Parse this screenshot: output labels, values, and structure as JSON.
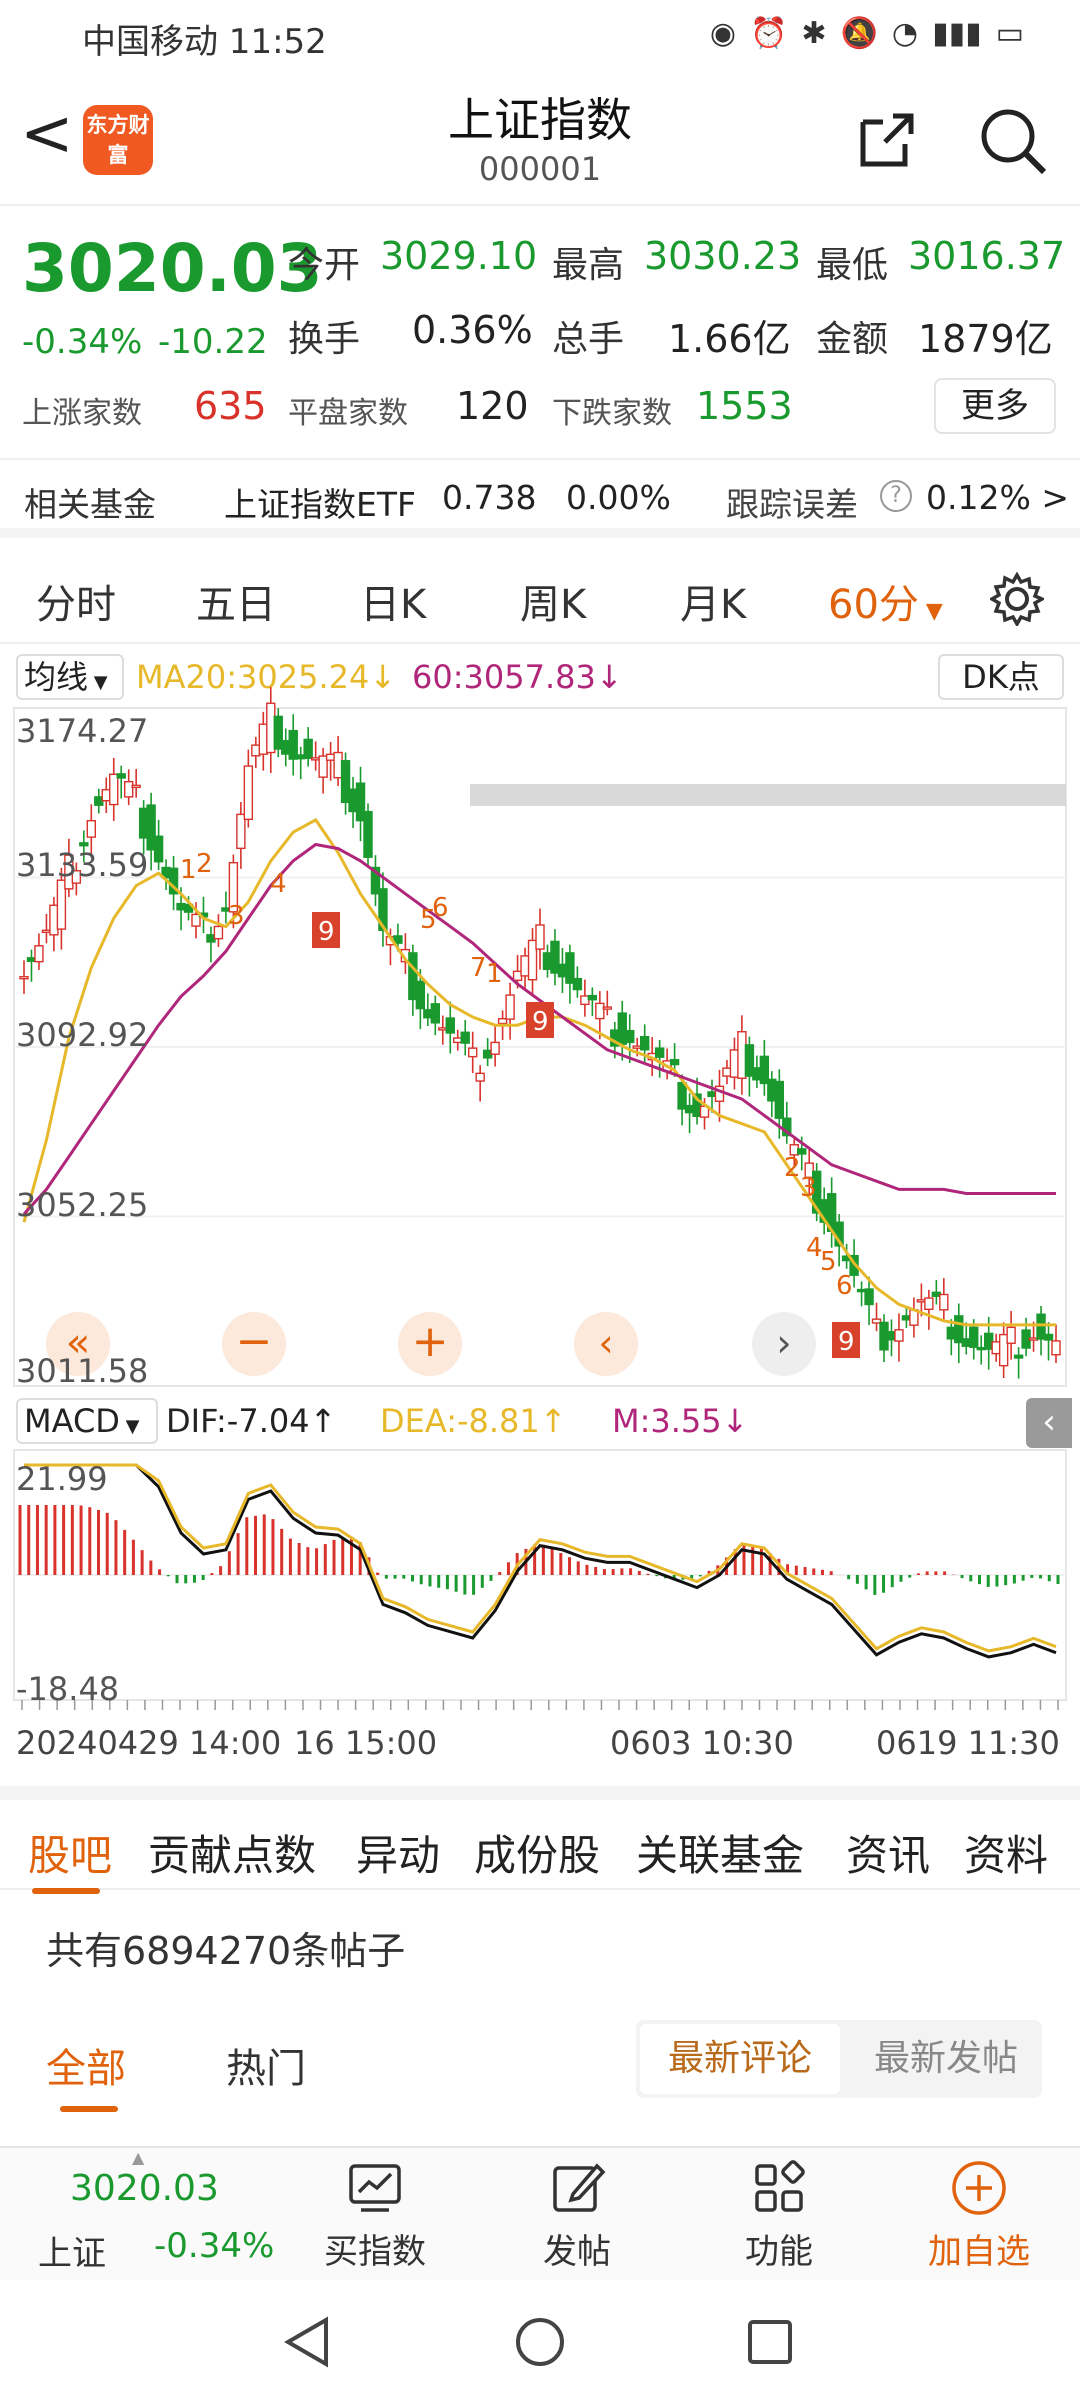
{
  "status_bar": {
    "carrier_time": "中国移动 11:52"
  },
  "header": {
    "back": "<",
    "logo": "东方财富",
    "title": "上证指数",
    "code": "000001"
  },
  "quote": {
    "price": "3020.03",
    "change_pct": "-0.34%",
    "change": "-10.22",
    "open_label": "今开",
    "open": "3029.10",
    "high_label": "最高",
    "high": "3030.23",
    "low_label": "最低",
    "low": "3016.37",
    "turnover_label": "换手",
    "turnover": "0.36%",
    "volume_label": "总手",
    "volume": "1.66亿",
    "amount_label": "金额",
    "amount": "1879亿",
    "up_label": "上涨家数",
    "up": "635",
    "flat_label": "平盘家数",
    "flat": "120",
    "down_label": "下跌家数",
    "down": "1553",
    "more": "更多"
  },
  "fund_row": {
    "label": "相关基金",
    "name": "上证指数ETF",
    "price": "0.738",
    "pct": "0.00%",
    "tracking_label": "跟踪误差",
    "tracking_value": "0.12% >"
  },
  "period_tabs": [
    "分时",
    "五日",
    "日K",
    "周K",
    "月K",
    "60分"
  ],
  "chart_header": {
    "indicator": "均线",
    "ma20": "MA20:3025.24↓",
    "ma60": "60:3057.83↓",
    "dk": "DK点"
  },
  "macd_header": {
    "indicator": "MACD",
    "dif": "DIF:-7.04↑",
    "dea": "DEA:-8.81↑",
    "m": "M:3.55↓"
  },
  "chart_data": {
    "type": "candlestick",
    "price_axis_labels": [
      "3174.27",
      "3133.59",
      "3092.92",
      "3052.25",
      "3011.58"
    ],
    "macd_axis_labels": [
      "21.99",
      "-18.48"
    ],
    "time_labels": [
      "20240429 14:00",
      "16 15:00",
      "0603 10:30",
      "0619 11:30"
    ],
    "close_path": [
      3112,
      3120,
      3135,
      3150,
      3158,
      3152,
      3140,
      3125,
      3120,
      3128,
      3160,
      3172,
      3165,
      3162,
      3160,
      3150,
      3120,
      3112,
      3102,
      3095,
      3088,
      3096,
      3110,
      3118,
      3112,
      3104,
      3098,
      3096,
      3090,
      3084,
      3078,
      3082,
      3092,
      3086,
      3070,
      3060,
      3050,
      3036,
      3022,
      3026,
      3030,
      3028,
      3022,
      3018,
      3020,
      3024,
      3020
    ],
    "ma20_path": [
      3050,
      3070,
      3095,
      3112,
      3124,
      3132,
      3135,
      3130,
      3124,
      3122,
      3128,
      3138,
      3145,
      3148,
      3140,
      3130,
      3122,
      3114,
      3108,
      3103,
      3100,
      3098,
      3098,
      3100,
      3100,
      3098,
      3095,
      3092,
      3090,
      3087,
      3080,
      3076,
      3074,
      3072,
      3064,
      3056,
      3048,
      3040,
      3034,
      3030,
      3028,
      3026,
      3025,
      3025,
      3025,
      3025,
      3025
    ],
    "ma60_path": [
      3052,
      3058,
      3066,
      3074,
      3082,
      3090,
      3098,
      3105,
      3110,
      3116,
      3124,
      3132,
      3138,
      3142,
      3141,
      3138,
      3134,
      3130,
      3126,
      3122,
      3118,
      3113,
      3108,
      3104,
      3100,
      3096,
      3092,
      3090,
      3088,
      3086,
      3084,
      3082,
      3080,
      3076,
      3072,
      3068,
      3064,
      3062,
      3060,
      3058,
      3058,
      3058,
      3057,
      3057,
      3057,
      3057,
      3057
    ],
    "td_labels": [
      "1",
      "2",
      "3",
      "4",
      "5",
      "6",
      "7",
      "9"
    ]
  },
  "news_tabs": [
    "股吧",
    "贡献点数",
    "异动",
    "成份股",
    "关联基金",
    "资讯",
    "资料"
  ],
  "posts": {
    "count": "共有6894270条帖子",
    "filter_all": "全部",
    "filter_hot": "热门",
    "sort_comment": "最新评论",
    "sort_post": "最新发帖"
  },
  "toolbar": {
    "price": "3020.03",
    "name": "上证",
    "pct": "-0.34%",
    "buy_index": "买指数",
    "post": "发帖",
    "functions": "功能",
    "add_watch": "加自选"
  },
  "colors": {
    "up": "#d8322a",
    "down": "#1a9a2e",
    "accent": "#e0620d",
    "ma20": "#e6b82a",
    "ma60": "#b0267a"
  }
}
